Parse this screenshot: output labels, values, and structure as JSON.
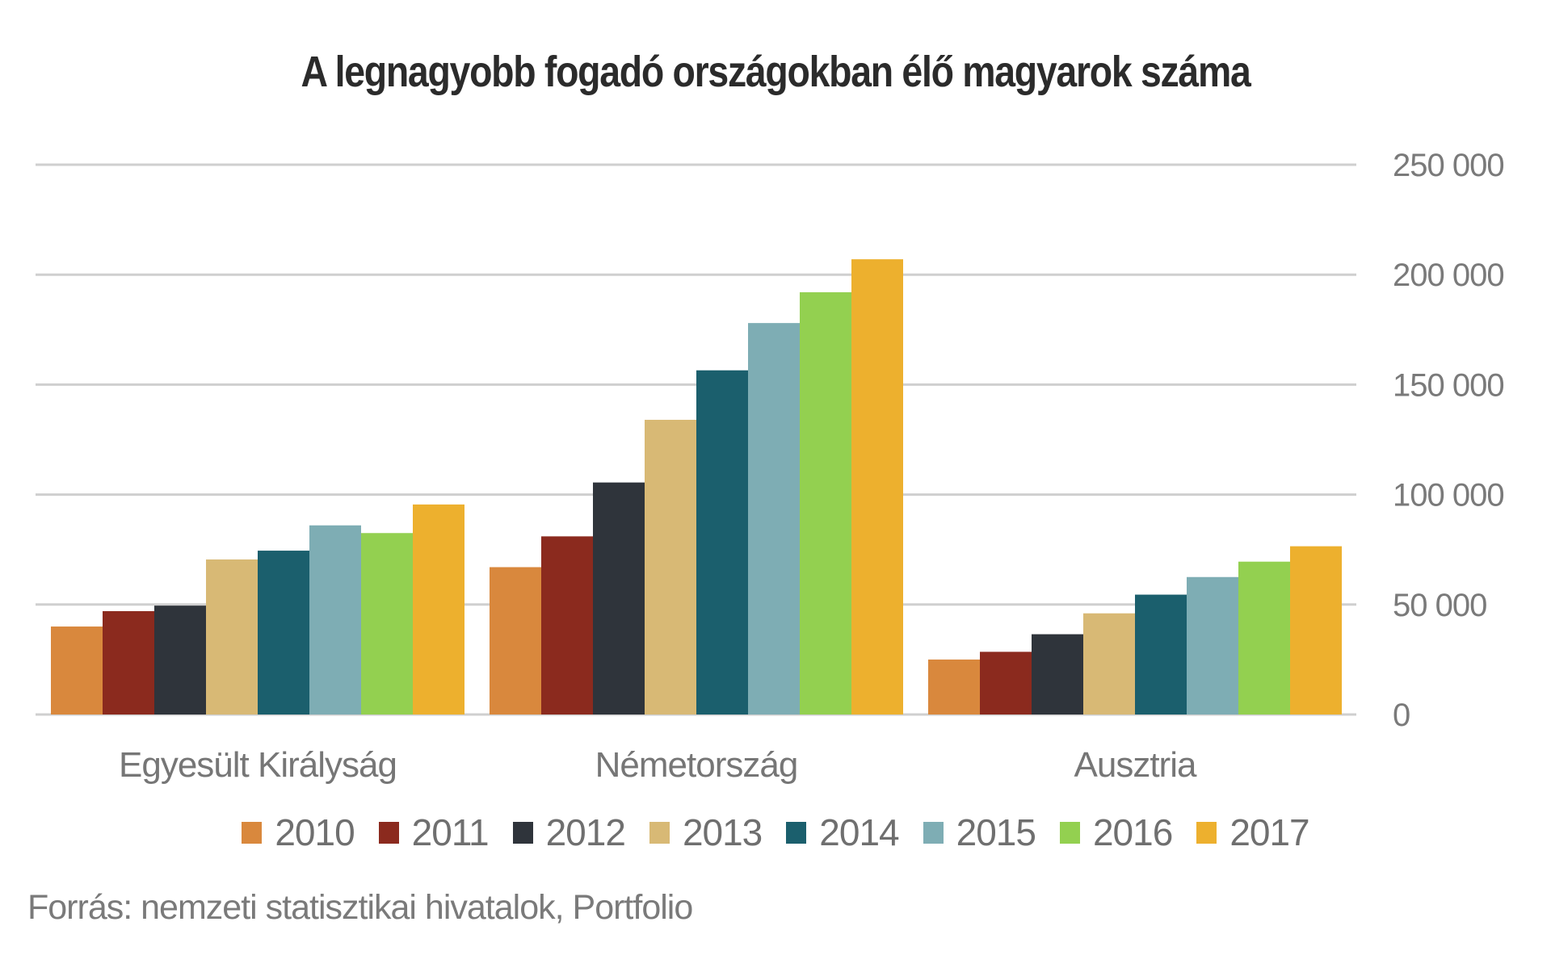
{
  "chart_data": {
    "type": "bar",
    "title": "A legnagyobb fogadó országokban élő magyarok száma",
    "xlabel": "",
    "ylabel": "",
    "ylim": [
      0,
      250000
    ],
    "y_ticks": [
      0,
      50000,
      100000,
      150000,
      200000,
      250000
    ],
    "y_tick_labels": [
      "0",
      "50 000",
      "100 000",
      "150 000",
      "200 000",
      "250 000"
    ],
    "y_axis_side": "right",
    "grid": true,
    "categories": [
      "Egyesült Királyság",
      "Németország",
      "Ausztria"
    ],
    "series": [
      {
        "name": "2010",
        "color": "#D9883D",
        "values": [
          40000,
          67000,
          25000
        ]
      },
      {
        "name": "2011",
        "color": "#8B2A1E",
        "values": [
          47000,
          81000,
          28500
        ]
      },
      {
        "name": "2012",
        "color": "#2F343B",
        "values": [
          49500,
          105500,
          36500
        ]
      },
      {
        "name": "2013",
        "color": "#D8B975",
        "values": [
          70500,
          134000,
          46000
        ]
      },
      {
        "name": "2014",
        "color": "#1B5F6D",
        "values": [
          74500,
          156500,
          54500
        ]
      },
      {
        "name": "2015",
        "color": "#7EADB4",
        "values": [
          86000,
          178000,
          62500
        ]
      },
      {
        "name": "2016",
        "color": "#93D050",
        "values": [
          82500,
          192000,
          69500
        ]
      },
      {
        "name": "2017",
        "color": "#EDB02E",
        "values": [
          95500,
          207000,
          76500
        ]
      }
    ],
    "legend_position": "bottom-center",
    "source": "Forrás: nemzeti statisztikai hivatalok, Portfolio"
  }
}
